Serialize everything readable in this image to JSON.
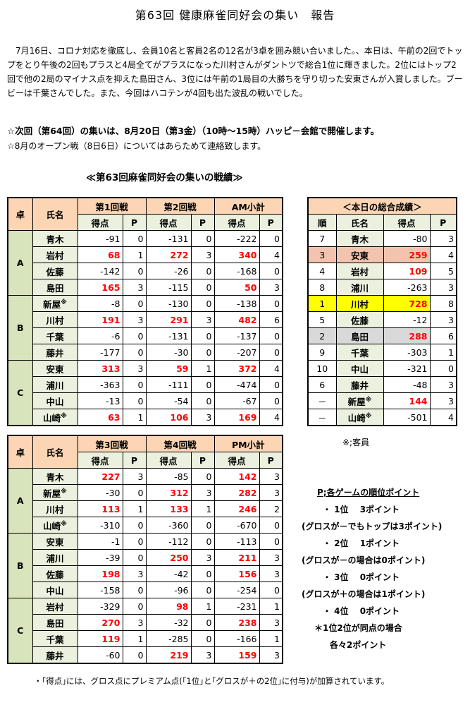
{
  "title": "第63回 健康麻雀同好会の集い　報告",
  "report_text": "7月16日、コロナ対応を徹底し、会員10名と客員2名の12名が3卓を囲み競い合いました。、本日は、午前の2回でトップをとり午後の2回もプラスと4局全てがプラスになった川村さんがダントツで総合1位に輝きました。2位にはトップ2回で他の2局のマイナス点を抑えた島田さん、3位には午前の1局目の大勝ちを守り切った安東さんが入賞しました。ブービーは千葉さんでした。また、今回はハコテンが4回も出た波乱の戦いでした。",
  "next_meeting": "☆次回（第64回）の集いは、8月20日（第3金）（10時〜15時）ハッピ－会館で開催します。",
  "open_match": "☆8月のオープン戦（8日6日）についてはあらためて連絡致します。",
  "results_title": "≪第63回麻雀同好会の集いの戦績≫",
  "guest_mark": "※",
  "guest_note": "※;客員",
  "colors": {
    "header": "#fcd5b4",
    "subheader": "#ebf1de",
    "table_label": "#d8e4bc",
    "positive": "#ff0000",
    "first_place": "#ffff00",
    "second_place": "#d9d9d9",
    "third_place": "#f2c4b0"
  },
  "am": {
    "headers": {
      "table": "卓",
      "name": "氏名",
      "game_a": "第1回戦",
      "game_b": "第2回戦",
      "subtotal": "AM小計",
      "score": "得点",
      "points": "P"
    },
    "groups": [
      {
        "table": "A",
        "rows": [
          {
            "name": "青木",
            "g1": "-91",
            "p1": "0",
            "g2": "-131",
            "p2": "0",
            "st": "-222",
            "sp": "0"
          },
          {
            "name": "岩村",
            "g1": "68",
            "p1": "1",
            "g2": "272",
            "p2": "3",
            "st": "340",
            "sp": "4"
          },
          {
            "name": "佐藤",
            "g1": "-142",
            "p1": "0",
            "g2": "-26",
            "p2": "0",
            "st": "-168",
            "sp": "0"
          },
          {
            "name": "島田",
            "g1": "165",
            "p1": "3",
            "g2": "-115",
            "p2": "0",
            "st": "50",
            "sp": "3"
          }
        ]
      },
      {
        "table": "B",
        "rows": [
          {
            "name": "新屋",
            "guest": true,
            "g1": "-8",
            "p1": "0",
            "g2": "-130",
            "p2": "0",
            "st": "-138",
            "sp": "0"
          },
          {
            "name": "川村",
            "g1": "191",
            "p1": "3",
            "g2": "291",
            "p2": "3",
            "st": "482",
            "sp": "6"
          },
          {
            "name": "千葉",
            "g1": "-6",
            "p1": "0",
            "g2": "-131",
            "p2": "0",
            "st": "-137",
            "sp": "0"
          },
          {
            "name": "藤井",
            "g1": "-177",
            "p1": "0",
            "g2": "-30",
            "p2": "0",
            "st": "-207",
            "sp": "0"
          }
        ]
      },
      {
        "table": "C",
        "rows": [
          {
            "name": "安東",
            "g1": "313",
            "p1": "3",
            "g2": "59",
            "p2": "1",
            "st": "372",
            "sp": "4"
          },
          {
            "name": "浦川",
            "g1": "-363",
            "p1": "0",
            "g2": "-111",
            "p2": "0",
            "st": "-474",
            "sp": "0"
          },
          {
            "name": "中山",
            "g1": "-13",
            "p1": "0",
            "g2": "-54",
            "p2": "0",
            "st": "-67",
            "sp": "0"
          },
          {
            "name": "山崎",
            "guest": true,
            "g1": "63",
            "p1": "1",
            "g2": "106",
            "p2": "3",
            "st": "169",
            "sp": "4"
          }
        ]
      }
    ]
  },
  "pm": {
    "headers": {
      "table": "卓",
      "name": "氏名",
      "game_a": "第3回戦",
      "game_b": "第4回戦",
      "subtotal": "PM小計",
      "score": "得点",
      "points": "P"
    },
    "groups": [
      {
        "table": "A",
        "rows": [
          {
            "name": "青木",
            "g1": "227",
            "p1": "3",
            "g2": "-85",
            "p2": "0",
            "st": "142",
            "sp": "3"
          },
          {
            "name": "新屋",
            "guest": true,
            "g1": "-30",
            "p1": "0",
            "g2": "312",
            "p2": "3",
            "st": "282",
            "sp": "3"
          },
          {
            "name": "川村",
            "g1": "113",
            "p1": "1",
            "g2": "133",
            "p2": "1",
            "st": "246",
            "sp": "2"
          },
          {
            "name": "山崎",
            "guest": true,
            "g1": "-310",
            "p1": "0",
            "g2": "-360",
            "p2": "0",
            "st": "-670",
            "sp": "0"
          }
        ]
      },
      {
        "table": "B",
        "rows": [
          {
            "name": "安東",
            "g1": "-1",
            "p1": "0",
            "g2": "-112",
            "p2": "0",
            "st": "-113",
            "sp": "0"
          },
          {
            "name": "浦川",
            "g1": "-39",
            "p1": "0",
            "g2": "250",
            "p2": "3",
            "st": "211",
            "sp": "3"
          },
          {
            "name": "佐藤",
            "g1": "198",
            "p1": "3",
            "g2": "-42",
            "p2": "0",
            "st": "156",
            "sp": "3"
          },
          {
            "name": "中山",
            "g1": "-158",
            "p1": "0",
            "g2": "-96",
            "p2": "0",
            "st": "-254",
            "sp": "0"
          }
        ]
      },
      {
        "table": "C",
        "rows": [
          {
            "name": "岩村",
            "g1": "-329",
            "p1": "0",
            "g2": "98",
            "p2": "1",
            "st": "-231",
            "sp": "1"
          },
          {
            "name": "島田",
            "g1": "270",
            "p1": "3",
            "g2": "-32",
            "p2": "0",
            "st": "238",
            "sp": "3"
          },
          {
            "name": "千葉",
            "g1": "119",
            "p1": "1",
            "g2": "-285",
            "p2": "0",
            "st": "-166",
            "sp": "1"
          },
          {
            "name": "藤井",
            "g1": "-60",
            "p1": "0",
            "g2": "219",
            "p2": "3",
            "st": "159",
            "sp": "3"
          }
        ]
      }
    ]
  },
  "total": {
    "title": "＜本日の総合成績＞",
    "headers": {
      "rank": "順",
      "name": "氏名",
      "score": "得点",
      "points": "P"
    },
    "rows": [
      {
        "rank": "7",
        "name": "青木",
        "score": "-80",
        "points": "3"
      },
      {
        "rank": "3",
        "name": "安東",
        "score": "259",
        "points": "4",
        "hl": "peach"
      },
      {
        "rank": "4",
        "name": "岩村",
        "score": "109",
        "points": "5"
      },
      {
        "rank": "8",
        "name": "浦川",
        "score": "-263",
        "points": "3"
      },
      {
        "rank": "1",
        "name": "川村",
        "score": "728",
        "points": "8",
        "hl": "yellow"
      },
      {
        "rank": "5",
        "name": "佐藤",
        "score": "-12",
        "points": "3"
      },
      {
        "rank": "2",
        "name": "島田",
        "score": "288",
        "points": "6",
        "hl": "gray"
      },
      {
        "rank": "9",
        "name": "千葉",
        "score": "-303",
        "points": "1"
      },
      {
        "rank": "10",
        "name": "中山",
        "score": "-321",
        "points": "0"
      },
      {
        "rank": "6",
        "name": "藤井",
        "score": "-48",
        "points": "3"
      },
      {
        "rank": "－",
        "name": "新屋",
        "guest": true,
        "score": "144",
        "points": "3"
      },
      {
        "rank": "－",
        "name": "山崎",
        "guest": true,
        "score": "-501",
        "points": "4"
      }
    ]
  },
  "rules": [
    "P;各ゲームの順位ポイント",
    "・ 1位　 3ポイント",
    "(グロスが－でもトップは3ポイント)",
    "・ 2位　 1ポイント",
    "(グロスが－の場合は0ポイント)",
    "・ 3位　 0ポイント",
    "(グロスが＋の場合は1ポイント)",
    "・ 4位　 0ポイント",
    "＊1位2位が同点の場合",
    "各々2ポイント"
  ],
  "footnote": "・｢得点｣には、グロス点にプレミアム点(｢1位｣と｢グロスが＋の2位｣に付与)が加算されています。"
}
